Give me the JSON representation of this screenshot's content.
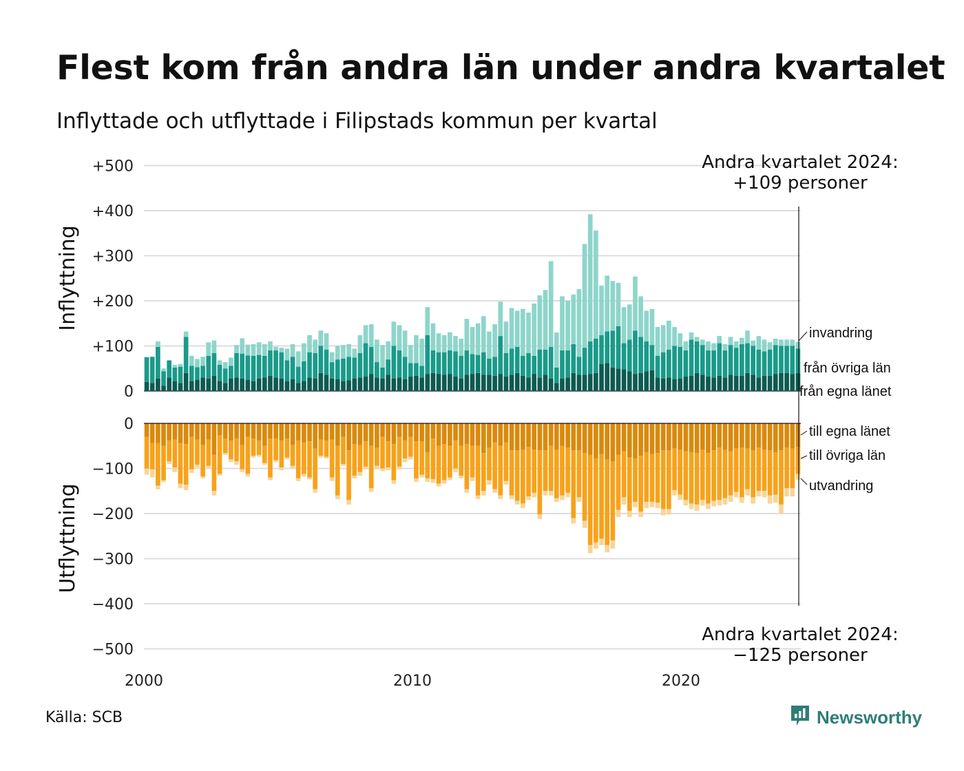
{
  "title": "Flest kom från andra län under andra kvartalet",
  "subtitle": "Inflyttade och utflyttade i Filipstads kommun per kvartal",
  "source": "Källa: SCB",
  "brand": "Newsworthy",
  "colors": {
    "in_egna": "#0e5a52",
    "in_ovriga": "#1a9a8a",
    "in_invandring": "#8ed5ca",
    "out_egna": "#d98a0c",
    "out_ovriga": "#f7a21b",
    "out_utvandring": "#f6d69a",
    "grid": "#dddddd",
    "brand": "#2f7d78"
  },
  "annotations": {
    "top": [
      "Andra kvartalet 2024:",
      "+109 personer"
    ],
    "bottom": [
      "Andra kvartalet 2024:",
      "−125 personer"
    ]
  },
  "chart_data": {
    "type": "bar",
    "stacked": true,
    "x_axis": {
      "start": "2000",
      "end": "2024",
      "period": "kvartal",
      "ticks": [
        "2000",
        "2010",
        "2020"
      ]
    },
    "panels": [
      {
        "name": "inflyttning",
        "ylabel": "Inflyttning",
        "ylim": [
          0,
          500
        ],
        "yticks": [
          0,
          100,
          200,
          300,
          400,
          500
        ],
        "ytick_labels": [
          "0",
          "+100",
          "+200",
          "+300",
          "+400",
          "+500"
        ],
        "series": [
          {
            "name": "från egna länet",
            "values": [
              20,
              18,
              28,
              12,
              30,
              22,
              18,
              40,
              22,
              25,
              30,
              28,
              34,
              22,
              18,
              28,
              30,
              28,
              25,
              22,
              28,
              30,
              34,
              30,
              28,
              22,
              26,
              18,
              22,
              30,
              28,
              40,
              36,
              28,
              26,
              22,
              24,
              28,
              30,
              32,
              38,
              30,
              28,
              36,
              28,
              30,
              26,
              32,
              34,
              30,
              38,
              40,
              38,
              36,
              38,
              32,
              28,
              36,
              38,
              40,
              36,
              36,
              34,
              38,
              32,
              36,
              40,
              34,
              30,
              38,
              30,
              36,
              28,
              18,
              28,
              30,
              40,
              36,
              36,
              38,
              40,
              60,
              62,
              52,
              50,
              48,
              44,
              38,
              40,
              44,
              46,
              30,
              28,
              30,
              26,
              28,
              32,
              34,
              40,
              36,
              32,
              30,
              34,
              30,
              36,
              34,
              34,
              40,
              36,
              30,
              34,
              34,
              38,
              40,
              40,
              38,
              40
            ]
          },
          {
            "name": "från övriga län",
            "values": [
              55,
              58,
              70,
              32,
              38,
              30,
              36,
              80,
              34,
              28,
              26,
              50,
              50,
              36,
              32,
              28,
              54,
              55,
              54,
              56,
              52,
              48,
              56,
              60,
              58,
              46,
              50,
              36,
              44,
              56,
              56,
              60,
              56,
              36,
              44,
              50,
              52,
              46,
              54,
              74,
              60,
              34,
              24,
              34,
              72,
              60,
              50,
              30,
              28,
              26,
              86,
              50,
              48,
              50,
              52,
              56,
              50,
              54,
              44,
              40,
              50,
              36,
              42,
              84,
              52,
              58,
              58,
              44,
              54,
              40,
              62,
              56,
              70,
              34,
              62,
              60,
              64,
              40,
              60,
              72,
              76,
              64,
              70,
              82,
              94,
              58,
              70,
              96,
              80,
              66,
              56,
              48,
              58,
              62,
              74,
              70,
              58,
              80,
              70,
              66,
              58,
              60,
              72,
              60,
              66,
              62,
              70,
              66,
              64,
              62,
              54,
              58,
              64,
              60,
              60,
              62,
              54
            ]
          },
          {
            "name": "invandring",
            "values": [
              0,
              0,
              12,
              6,
              0,
              6,
              6,
              12,
              22,
              18,
              20,
              30,
              28,
              10,
              14,
              18,
              18,
              34,
              24,
              26,
              28,
              26,
              20,
              8,
              10,
              26,
              28,
              34,
              40,
              38,
              30,
              34,
              36,
              22,
              30,
              30,
              28,
              20,
              40,
              40,
              50,
              50,
              50,
              40,
              54,
              56,
              58,
              40,
              62,
              60,
              62,
              60,
              42,
              38,
              40,
              34,
              38,
              70,
              60,
              70,
              80,
              60,
              72,
              76,
              70,
              90,
              80,
              104,
              90,
              116,
              120,
              132,
              190,
              78,
              120,
              110,
              110,
              150,
              230,
              282,
              240,
              110,
              124,
              110,
              96,
              80,
              78,
              120,
              90,
              68,
              80,
              64,
              60,
              64,
              42,
              30,
              20,
              16,
              10,
              12,
              20,
              16,
              16,
              14,
              18,
              14,
              14,
              28,
              12,
              30,
              26,
              16,
              14,
              14,
              14,
              14,
              15
            ]
          }
        ]
      },
      {
        "name": "utflyttning",
        "ylabel": "Utflyttning",
        "ylim": [
          -500,
          0
        ],
        "yticks": [
          0,
          -100,
          -200,
          -300,
          -400,
          -500
        ],
        "ytick_labels": [
          "0",
          "−100",
          "−200",
          "−300",
          "−400",
          "−500"
        ],
        "series": [
          {
            "name": "till egna länet",
            "values": [
              -30,
              -44,
              -44,
              -50,
              -38,
              -36,
              -44,
              -46,
              -30,
              -36,
              -48,
              -36,
              -70,
              -26,
              -34,
              -38,
              -34,
              -48,
              -30,
              -34,
              -38,
              -50,
              -34,
              -34,
              -38,
              -34,
              -48,
              -38,
              -42,
              -40,
              -56,
              -36,
              -38,
              -36,
              -50,
              -30,
              -60,
              -46,
              -48,
              -40,
              -50,
              -54,
              -30,
              -40,
              -46,
              -30,
              -38,
              -30,
              -40,
              -40,
              -64,
              -34,
              -50,
              -46,
              -50,
              -38,
              -50,
              -46,
              -50,
              -50,
              -66,
              -54,
              -42,
              -50,
              -42,
              -60,
              -60,
              -58,
              -52,
              -58,
              -60,
              -60,
              -50,
              -58,
              -50,
              -54,
              -60,
              -60,
              -66,
              -70,
              -78,
              -68,
              -80,
              -84,
              -70,
              -62,
              -76,
              -78,
              -72,
              -64,
              -68,
              -66,
              -60,
              -60,
              -56,
              -58,
              -62,
              -64,
              -66,
              -58,
              -66,
              -60,
              -54,
              -58,
              -62,
              -56,
              -54,
              -56,
              -60,
              -54,
              -58,
              -60,
              -64,
              -60,
              -54,
              -56,
              -52
            ]
          },
          {
            "name": "till övriga län",
            "values": [
              -70,
              -58,
              -94,
              -76,
              -46,
              -62,
              -90,
              -90,
              -72,
              -56,
              -70,
              -58,
              -80,
              -86,
              -32,
              -42,
              -50,
              -54,
              -82,
              -38,
              -32,
              -38,
              -86,
              -48,
              -60,
              -42,
              -46,
              -84,
              -70,
              -80,
              -90,
              -36,
              -36,
              -84,
              -110,
              -60,
              -110,
              -70,
              -60,
              -56,
              -94,
              -40,
              -70,
              -58,
              -80,
              -66,
              -40,
              -44,
              -82,
              -74,
              -58,
              -90,
              -84,
              -80,
              -70,
              -62,
              -66,
              -100,
              -70,
              -110,
              -84,
              -72,
              -104,
              -110,
              -86,
              -100,
              -112,
              -120,
              -110,
              -96,
              -142,
              -90,
              -100,
              -108,
              -110,
              -100,
              -150,
              -104,
              -150,
              -200,
              -186,
              -188,
              -190,
              -176,
              -122,
              -102,
              -118,
              -96,
              -124,
              -110,
              -106,
              -110,
              -130,
              -130,
              -92,
              -100,
              -108,
              -114,
              -114,
              -112,
              -112,
              -112,
              -116,
              -108,
              -98,
              -96,
              -110,
              -90,
              -104,
              -96,
              -92,
              -100,
              -94,
              -120,
              -90,
              -88,
              -60
            ]
          },
          {
            "name": "utvandring",
            "values": [
              -14,
              -18,
              -8,
              -4,
              -6,
              -10,
              -10,
              -12,
              -8,
              -6,
              -4,
              -6,
              -10,
              -4,
              -4,
              -6,
              -8,
              -6,
              -6,
              -4,
              -4,
              -4,
              -6,
              -4,
              -6,
              -4,
              -6,
              -6,
              -6,
              -4,
              -8,
              -4,
              -4,
              -8,
              -8,
              -4,
              -10,
              -6,
              -8,
              -6,
              -8,
              -8,
              -6,
              -6,
              -8,
              -6,
              -8,
              -6,
              -8,
              -6,
              -8,
              -8,
              -6,
              -8,
              -6,
              -8,
              -6,
              -8,
              -8,
              -8,
              -10,
              -10,
              -8,
              -8,
              -8,
              -8,
              -8,
              -10,
              -8,
              -10,
              -10,
              -10,
              -10,
              -8,
              -10,
              -10,
              -12,
              -10,
              -16,
              -18,
              -14,
              -14,
              -16,
              -18,
              -16,
              -16,
              -14,
              -12,
              -12,
              -14,
              -12,
              -12,
              -14,
              -12,
              -12,
              -12,
              -12,
              -12,
              -14,
              -12,
              -12,
              -12,
              -12,
              -14,
              -14,
              -12,
              -12,
              -14,
              -14,
              -12,
              -14,
              -18,
              -18,
              -20,
              -18,
              -18,
              -13
            ]
          }
        ]
      }
    ],
    "segment_labels_top": [
      "invandring",
      "från övriga län",
      "från egna länet"
    ],
    "segment_labels_bottom": [
      "till egna länet",
      "till övriga län",
      "utvandring"
    ],
    "highlight": {
      "period": "Andra kvartalet 2024",
      "inflyttning": 109,
      "utflyttning": -125
    }
  }
}
